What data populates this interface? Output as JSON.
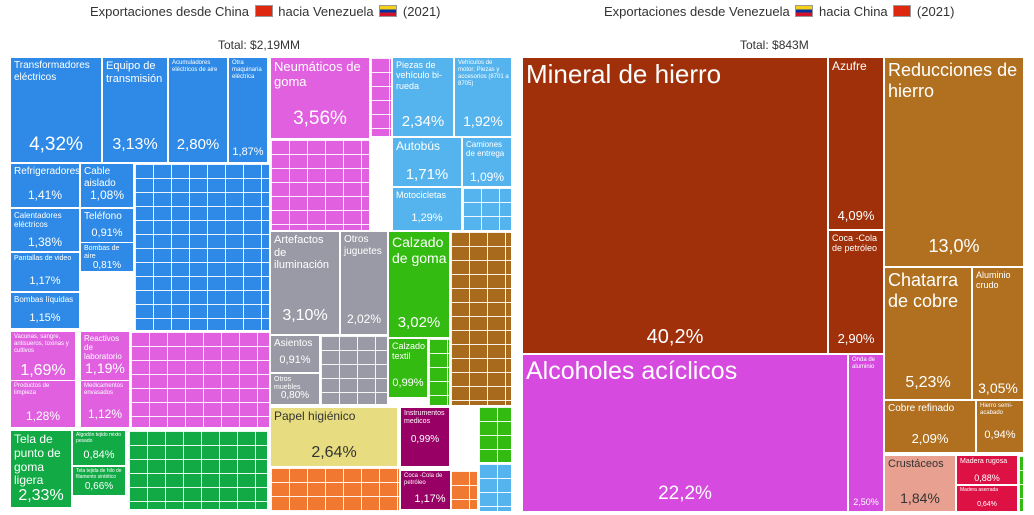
{
  "left": {
    "title_pre": "Exportaciones desde China",
    "title_mid": "hacia Venezuela",
    "title_year": "(2021)",
    "total": "Total: $2,19MM"
  },
  "right": {
    "title_pre": "Exportaciones desde Venezuela",
    "title_mid": "hacia China",
    "title_year": "(2021)",
    "total": "Total: $843M"
  },
  "colors": {
    "blue": "#2e8ae6",
    "pink": "#e060e0",
    "gray": "#9a9aa6",
    "green_bright": "#33bb11",
    "green_dark": "#11aa44",
    "brown": "#a86a1c",
    "yellow": "#e8dc80",
    "lightblue": "#55b4ee",
    "orange": "#f07830",
    "purple": "#990066",
    "rust": "#a0300a",
    "magenta": "#d64ae0",
    "gold": "#b07020",
    "salmon": "#e8a090",
    "red": "#dd1144"
  },
  "chart_data": [
    {
      "type": "treemap",
      "title": "Exportaciones desde China hacia Venezuela (2021)",
      "subtitle": "Total: $2,19MM",
      "items": [
        {
          "label": "Transformadores eléctricos",
          "pct": "4,32%"
        },
        {
          "label": "Equipo de transmisión",
          "pct": "3,13%"
        },
        {
          "label": "Acumuladores eléctricos de aire",
          "pct": "2,80%"
        },
        {
          "label": "Otra maquinaria eléctrica",
          "pct": "1,87%"
        },
        {
          "label": "Refrigeradores",
          "pct": "1,41%"
        },
        {
          "label": "Cable aislado",
          "pct": "1,08%"
        },
        {
          "label": "Calentadores eléctricos",
          "pct": "1,38%"
        },
        {
          "label": "Teléfono",
          "pct": "0,91%"
        },
        {
          "label": "Pantallas de video",
          "pct": "1,17%"
        },
        {
          "label": "Bombas de aire",
          "pct": "0,81%"
        },
        {
          "label": "Bombas líquidas",
          "pct": "1,15%"
        },
        {
          "label": "Neumáticos de goma",
          "pct": "3,56%"
        },
        {
          "label": "Piezas de vehículo bi-rueda",
          "pct": "2,34%"
        },
        {
          "label": "Vehículos de motor; Piezas y accesorios (8701 a 8705)",
          "pct": "1,92%"
        },
        {
          "label": "Autobús",
          "pct": "1,71%"
        },
        {
          "label": "Camiones de entrega",
          "pct": "1,09%"
        },
        {
          "label": "Motocicletas",
          "pct": "1,29%"
        },
        {
          "label": "Artefactos de iluminación",
          "pct": "3,10%"
        },
        {
          "label": "Otros juguetes",
          "pct": "2,02%"
        },
        {
          "label": "Asientos",
          "pct": "0,91%"
        },
        {
          "label": "Otros muebles",
          "pct": "0,80%"
        },
        {
          "label": "Calzado de goma",
          "pct": "3,02%"
        },
        {
          "label": "Calzado textil",
          "pct": "0,99%"
        },
        {
          "label": "Vacunas, sangre, antisueros, toxinas y cultivos",
          "pct": "1,69%"
        },
        {
          "label": "Reactivos de laboratorio",
          "pct": "1,19%"
        },
        {
          "label": "Productos de limpieza",
          "pct": "1,28%"
        },
        {
          "label": "Medicamentos envasados",
          "pct": "1,12%"
        },
        {
          "label": "Tela de punto de goma ligera",
          "pct": "2,33%"
        },
        {
          "label": "Algodón tejido mixto pesado",
          "pct": "0,84%"
        },
        {
          "label": "Tela tejida de hilo de filamento sintético",
          "pct": "0,66%"
        },
        {
          "label": "Papel higiénico",
          "pct": "2,64%"
        },
        {
          "label": "Instrumentos medicos",
          "pct": "0,99%"
        },
        {
          "label": "Coca -Cola de petróleo",
          "pct": "1,17%"
        }
      ]
    },
    {
      "type": "treemap",
      "title": "Exportaciones desde Venezuela hacia China (2021)",
      "subtitle": "Total: $843M",
      "items": [
        {
          "label": "Mineral de hierro",
          "pct": "40,2%"
        },
        {
          "label": "Azufre",
          "pct": "4,09%"
        },
        {
          "label": "Coca -Cola de petróleo",
          "pct": "2,90%"
        },
        {
          "label": "Alcoholes acíclicos",
          "pct": "22,2%"
        },
        {
          "label": "Onda de aluminio",
          "pct": "2,50%"
        },
        {
          "label": "Reducciones de hierro",
          "pct": "13,0%"
        },
        {
          "label": "Chatarra de cobre",
          "pct": "5,23%"
        },
        {
          "label": "Aluminio crudo",
          "pct": "3,05%"
        },
        {
          "label": "Cobre refinado",
          "pct": "2,09%"
        },
        {
          "label": "Hierro semi-acabado",
          "pct": "0,94%"
        },
        {
          "label": "Crustáceos",
          "pct": "1,84%"
        },
        {
          "label": "Madera rugosa",
          "pct": "0,88%"
        },
        {
          "label": "Madera aserrada",
          "pct": "0,64%"
        }
      ]
    }
  ]
}
